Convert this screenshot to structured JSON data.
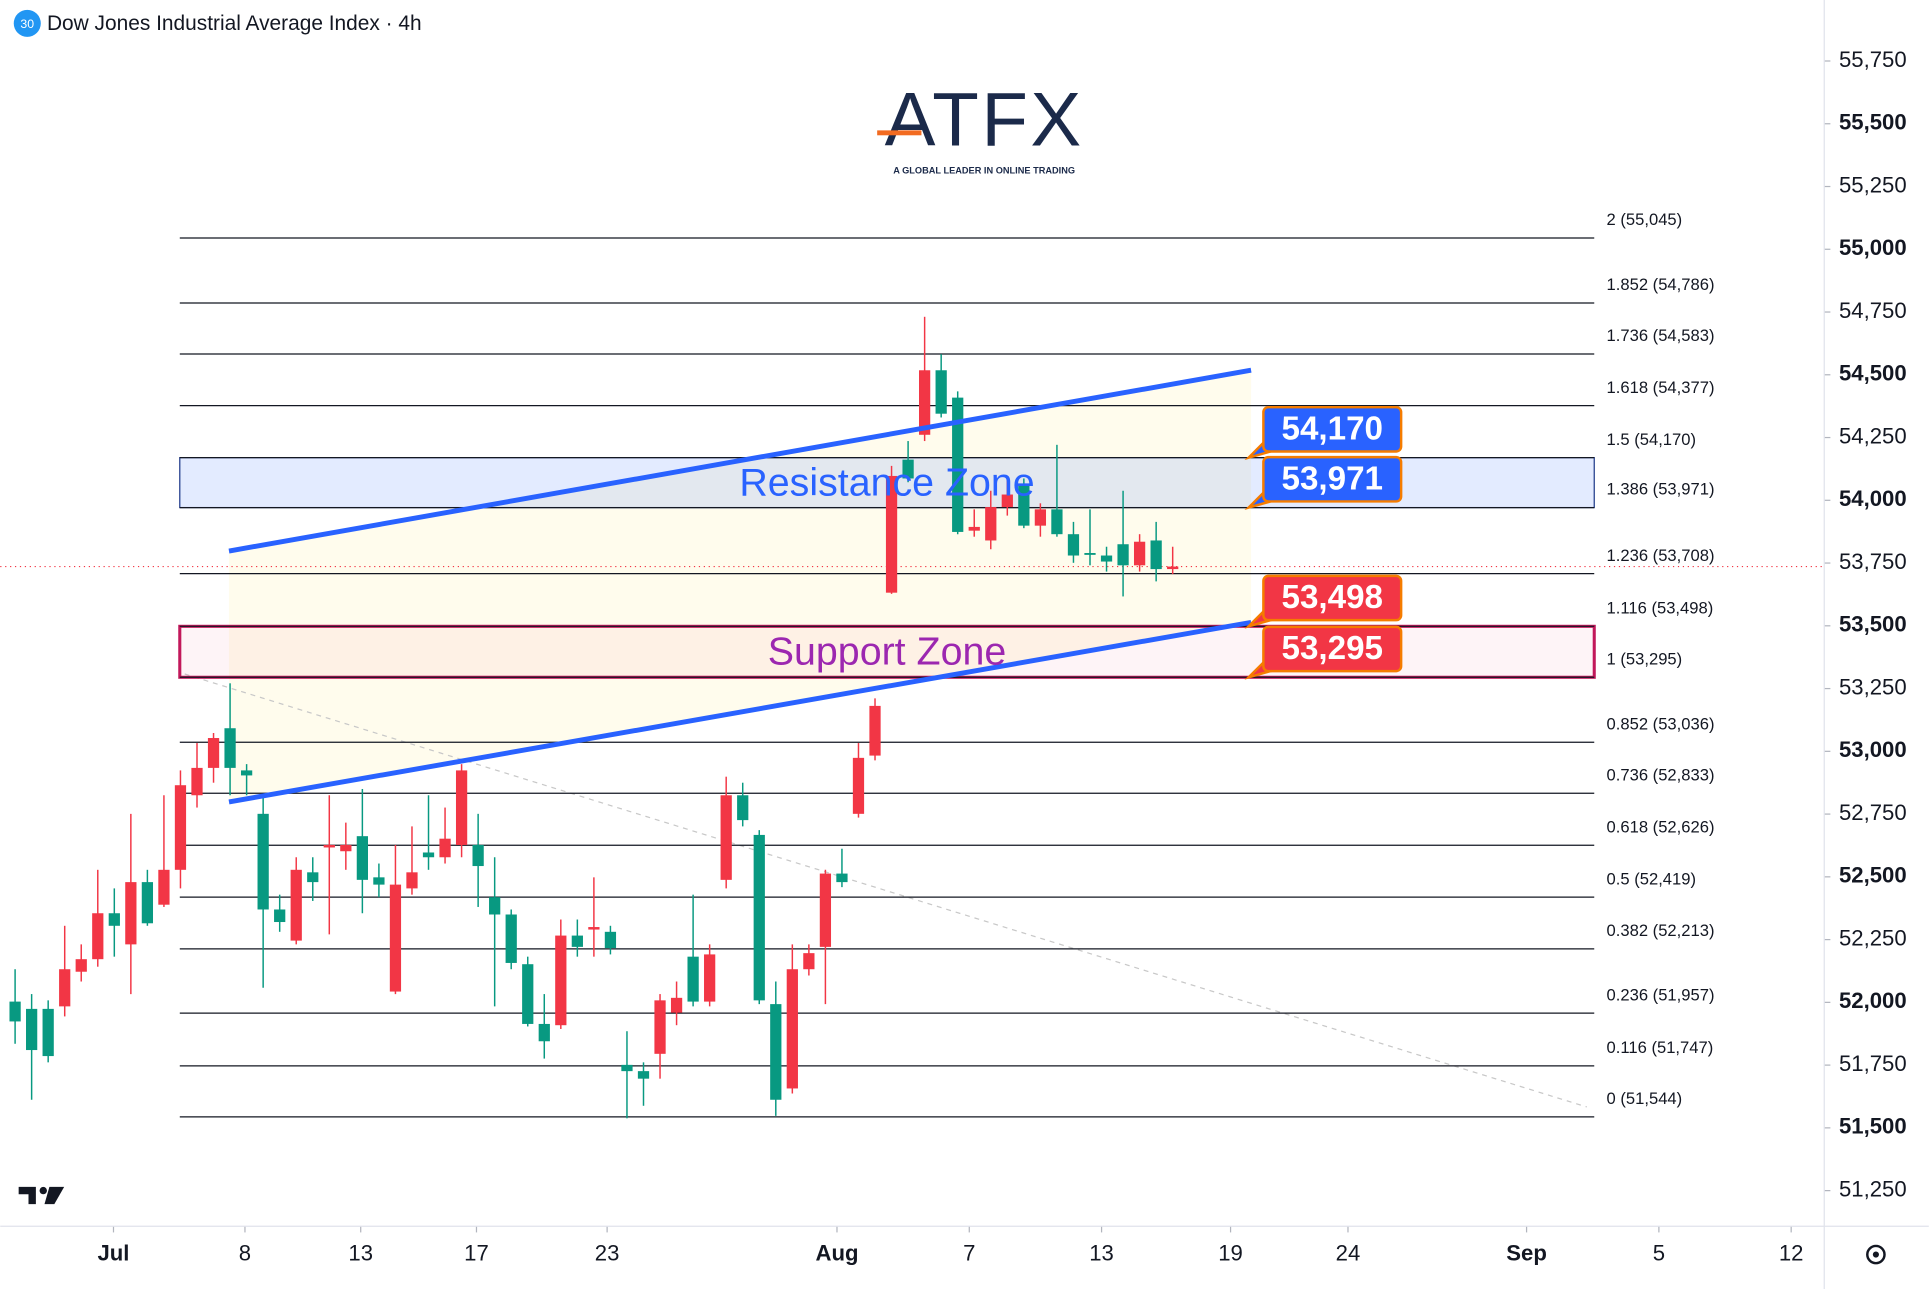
{
  "chart_data": {
    "type": "candlestick",
    "symbol_badge": "30",
    "title": "Dow Jones Industrial Average Index · 4h",
    "watermark": "ATFX",
    "watermark_tagline": "A GLOBAL LEADER IN ONLINE TRADING",
    "up_color": "#f23645",
    "down_color": "#089981",
    "open": [
      52003,
      51974,
      51974,
      51984,
      52122,
      52172,
      52355,
      52231,
      52479,
      52389,
      52528,
      52825,
      52934,
      53092,
      52924,
      52751,
      52370,
      52246,
      52518,
      52617,
      52602,
      52662,
      52498,
      52043,
      52454,
      52597,
      52578,
      52627,
      52627,
      52419,
      52350,
      52152,
      51914,
      51909,
      52266,
      52290,
      52281,
      51751,
      51726,
      51795,
      51959,
      52182,
      52003,
      52488,
      52825,
      52667,
      51993,
      51657,
      52132,
      52221,
      52513,
      52751,
      52983,
      53632,
      54162,
      54261,
      54518,
      54409,
      53879,
      53840,
      53973,
      54063,
      53899,
      53964,
      53865,
      53790,
      53780,
      53825,
      53741,
      53840,
      53726
    ],
    "high": [
      52132,
      52033,
      52008,
      52305,
      52231,
      52528,
      52454,
      52751,
      52528,
      52825,
      52924,
      53033,
      53073,
      53271,
      52949,
      52825,
      52429,
      52578,
      52578,
      52825,
      52716,
      52850,
      52553,
      52627,
      52701,
      52825,
      52776,
      52949,
      52751,
      52578,
      52370,
      52182,
      52033,
      52330,
      52330,
      52498,
      52305,
      51885,
      51761,
      52033,
      52083,
      52429,
      52231,
      52899,
      52875,
      52686,
      52083,
      52231,
      52231,
      52528,
      52612,
      53033,
      53211,
      54137,
      54236,
      54731,
      54582,
      54434,
      53964,
      54038,
      54087,
      54087,
      53988,
      54221,
      53914,
      53964,
      53815,
      54038,
      53865,
      53914,
      53815
    ],
    "low": [
      51835,
      51612,
      51761,
      51944,
      52083,
      52142,
      52182,
      52033,
      52305,
      52380,
      52454,
      52776,
      52875,
      52825,
      52825,
      52058,
      52281,
      52231,
      52404,
      52271,
      52528,
      52355,
      52419,
      52033,
      52429,
      52528,
      52553,
      52578,
      52380,
      51984,
      52132,
      51904,
      51776,
      51894,
      52182,
      52182,
      52191,
      51538,
      51588,
      51696,
      51909,
      51984,
      51984,
      52454,
      52701,
      51993,
      51548,
      51637,
      52107,
      51993,
      52459,
      52736,
      52964,
      53627,
      54072,
      54236,
      54330,
      53865,
      53855,
      53805,
      53939,
      53889,
      53855,
      53855,
      53751,
      53741,
      53716,
      53617,
      53716,
      53677,
      53706
    ],
    "close": [
      51924,
      51810,
      51786,
      52132,
      52172,
      52355,
      52305,
      52479,
      52315,
      52528,
      52865,
      52934,
      53053,
      52934,
      52904,
      52370,
      52320,
      52528,
      52479,
      52627,
      52627,
      52488,
      52469,
      52469,
      52518,
      52578,
      52652,
      52924,
      52543,
      52350,
      52157,
      51914,
      51845,
      52266,
      52221,
      52300,
      52216,
      51726,
      51696,
      52008,
      52018,
      52003,
      52191,
      52825,
      52726,
      52008,
      51612,
      52132,
      52196,
      52513,
      52479,
      52974,
      53181,
      54097,
      54087,
      54518,
      54345,
      53874,
      53894,
      53973,
      54023,
      53899,
      53964,
      53865,
      53780,
      53785,
      53756,
      53741,
      53835,
      53726,
      53736
    ],
    "xlim": [
      -0.9,
      109.4
    ],
    "xticks": [
      {
        "value": 5.95,
        "label": "Jul"
      },
      {
        "value": 13.9,
        "label": "8"
      },
      {
        "value": 20.9,
        "label": "13"
      },
      {
        "value": 27.9,
        "label": "17"
      },
      {
        "value": 35.8,
        "label": "23"
      },
      {
        "value": 49.7,
        "label": "Aug"
      },
      {
        "value": 57.7,
        "label": "7"
      },
      {
        "value": 65.7,
        "label": "13"
      },
      {
        "value": 73.5,
        "label": "19"
      },
      {
        "value": 80.6,
        "label": "24"
      },
      {
        "value": 91.4,
        "label": "Sep"
      },
      {
        "value": 99.4,
        "label": "5"
      },
      {
        "value": 107.4,
        "label": "12"
      }
    ],
    "ylim": [
      51108,
      55993
    ],
    "yticks": [
      {
        "value": 51250,
        "label": "51,250"
      },
      {
        "value": 51500,
        "label": "51,500"
      },
      {
        "value": 51750,
        "label": "51,750"
      },
      {
        "value": 52000,
        "label": "52,000"
      },
      {
        "value": 52250,
        "label": "52,250"
      },
      {
        "value": 52500,
        "label": "52,500"
      },
      {
        "value": 52750,
        "label": "52,750"
      },
      {
        "value": 53000,
        "label": "53,000"
      },
      {
        "value": 53250,
        "label": "53,250"
      },
      {
        "value": 53500,
        "label": "53,500"
      },
      {
        "value": 53750,
        "label": "53,750"
      },
      {
        "value": 54000,
        "label": "54,000"
      },
      {
        "value": 54250,
        "label": "54,250"
      },
      {
        "value": 54500,
        "label": "54,500"
      },
      {
        "value": 54750,
        "label": "54,750"
      },
      {
        "value": 55000,
        "label": "55,000"
      },
      {
        "value": 55250,
        "label": "55,250"
      },
      {
        "value": 55500,
        "label": "55,500"
      },
      {
        "value": 55750,
        "label": "55,750"
      }
    ],
    "fib_levels": [
      {
        "value": 55045,
        "label": "2 (55,045)"
      },
      {
        "value": 54786,
        "label": "1.852 (54,786)"
      },
      {
        "value": 54583,
        "label": "1.736 (54,583)"
      },
      {
        "value": 54377,
        "label": "1.618 (54,377)"
      },
      {
        "value": 54170,
        "label": "1.5 (54,170)"
      },
      {
        "value": 53971,
        "label": "1.386 (53,971)"
      },
      {
        "value": 53708,
        "label": "1.236 (53,708)"
      },
      {
        "value": 53498,
        "label": "1.116 (53,498)"
      },
      {
        "value": 53295,
        "label": "1 (53,295)"
      },
      {
        "value": 53036,
        "label": "0.852 (53,036)"
      },
      {
        "value": 52833,
        "label": "0.736 (52,833)"
      },
      {
        "value": 52626,
        "label": "0.618 (52,626)"
      },
      {
        "value": 52419,
        "label": "0.5 (52,419)"
      },
      {
        "value": 52213,
        "label": "0.382 (52,213)"
      },
      {
        "value": 51957,
        "label": "0.236 (51,957)"
      },
      {
        "value": 51747,
        "label": "0.116 (51,747)"
      },
      {
        "value": 51544,
        "label": "0 (51,544)"
      }
    ],
    "zones": [
      {
        "name": "Resistance Zone",
        "top": 54170,
        "bottom": 53971,
        "color": "#2962ff"
      },
      {
        "name": "Support Zone",
        "top": 53498,
        "bottom": 53295,
        "color": "#9c27b0"
      }
    ],
    "price_labels": [
      {
        "value": 54170,
        "label": "54,170",
        "color": "#2962ff"
      },
      {
        "value": 53971,
        "label": "53,971",
        "color": "#2962ff"
      },
      {
        "value": 53498,
        "label": "53,498",
        "color": "#f23645"
      },
      {
        "value": 53295,
        "label": "53,295",
        "color": "#f23645"
      }
    ]
  }
}
